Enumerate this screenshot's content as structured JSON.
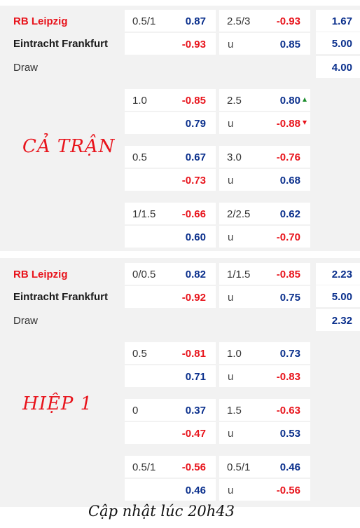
{
  "full_time": {
    "label": "CẢ TRẬN",
    "teams": {
      "home": "RB Leipzig",
      "away": "Eintracht Frankfurt",
      "draw": "Draw"
    },
    "rows": [
      {
        "hcap_line": "0.5/1",
        "hcap_home": "0.87",
        "hcap_away": "-0.93",
        "ou_line": "2.5/3",
        "ou_over": "-0.93",
        "ou_under_label": "u",
        "ou_under": "0.85"
      },
      {
        "hcap_line": "1.0",
        "hcap_home": "-0.85",
        "hcap_away": "0.79",
        "ou_line": "2.5",
        "ou_over": "0.80",
        "ou_under_label": "u",
        "ou_under": "-0.88",
        "over_trend": "up",
        "under_trend": "down"
      },
      {
        "hcap_line": "0.5",
        "hcap_home": "0.67",
        "hcap_away": "-0.73",
        "ou_line": "3.0",
        "ou_over": "-0.76",
        "ou_under_label": "u",
        "ou_under": "0.68"
      },
      {
        "hcap_line": "1/1.5",
        "hcap_home": "-0.66",
        "hcap_away": "0.60",
        "ou_line": "2/2.5",
        "ou_over": "0.62",
        "ou_under_label": "u",
        "ou_under": "-0.70"
      }
    ],
    "x12": {
      "home": "1.67",
      "away": "5.00",
      "draw": "4.00"
    }
  },
  "first_half": {
    "label": "HIỆP 1",
    "teams": {
      "home": "RB Leipzig",
      "away": "Eintracht Frankfurt",
      "draw": "Draw"
    },
    "rows": [
      {
        "hcap_line": "0/0.5",
        "hcap_home": "0.82",
        "hcap_away": "-0.92",
        "ou_line": "1/1.5",
        "ou_over": "-0.85",
        "ou_under_label": "u",
        "ou_under": "0.75"
      },
      {
        "hcap_line": "0.5",
        "hcap_home": "-0.81",
        "hcap_away": "0.71",
        "ou_line": "1.0",
        "ou_over": "0.73",
        "ou_under_label": "u",
        "ou_under": "-0.83"
      },
      {
        "hcap_line": "0",
        "hcap_home": "0.37",
        "hcap_away": "-0.47",
        "ou_line": "1.5",
        "ou_over": "-0.63",
        "ou_under_label": "u",
        "ou_under": "0.53"
      },
      {
        "hcap_line": "0.5/1",
        "hcap_home": "-0.56",
        "hcap_away": "0.46",
        "ou_line": "0.5/1",
        "ou_over": "0.46",
        "ou_under_label": "u",
        "ou_under": "-0.56"
      }
    ],
    "x12": {
      "home": "2.23",
      "away": "5.00",
      "draw": "2.32"
    }
  },
  "footer": {
    "text": "Cập nhật lúc 20h43"
  },
  "colors": {
    "negative": "#e8141c",
    "positive": "#0a2f8c",
    "home_team": "#e8141c",
    "trend_up": "#1a8c2a",
    "trend_down": "#e8141c",
    "panel_bg": "#f2f2f2"
  }
}
